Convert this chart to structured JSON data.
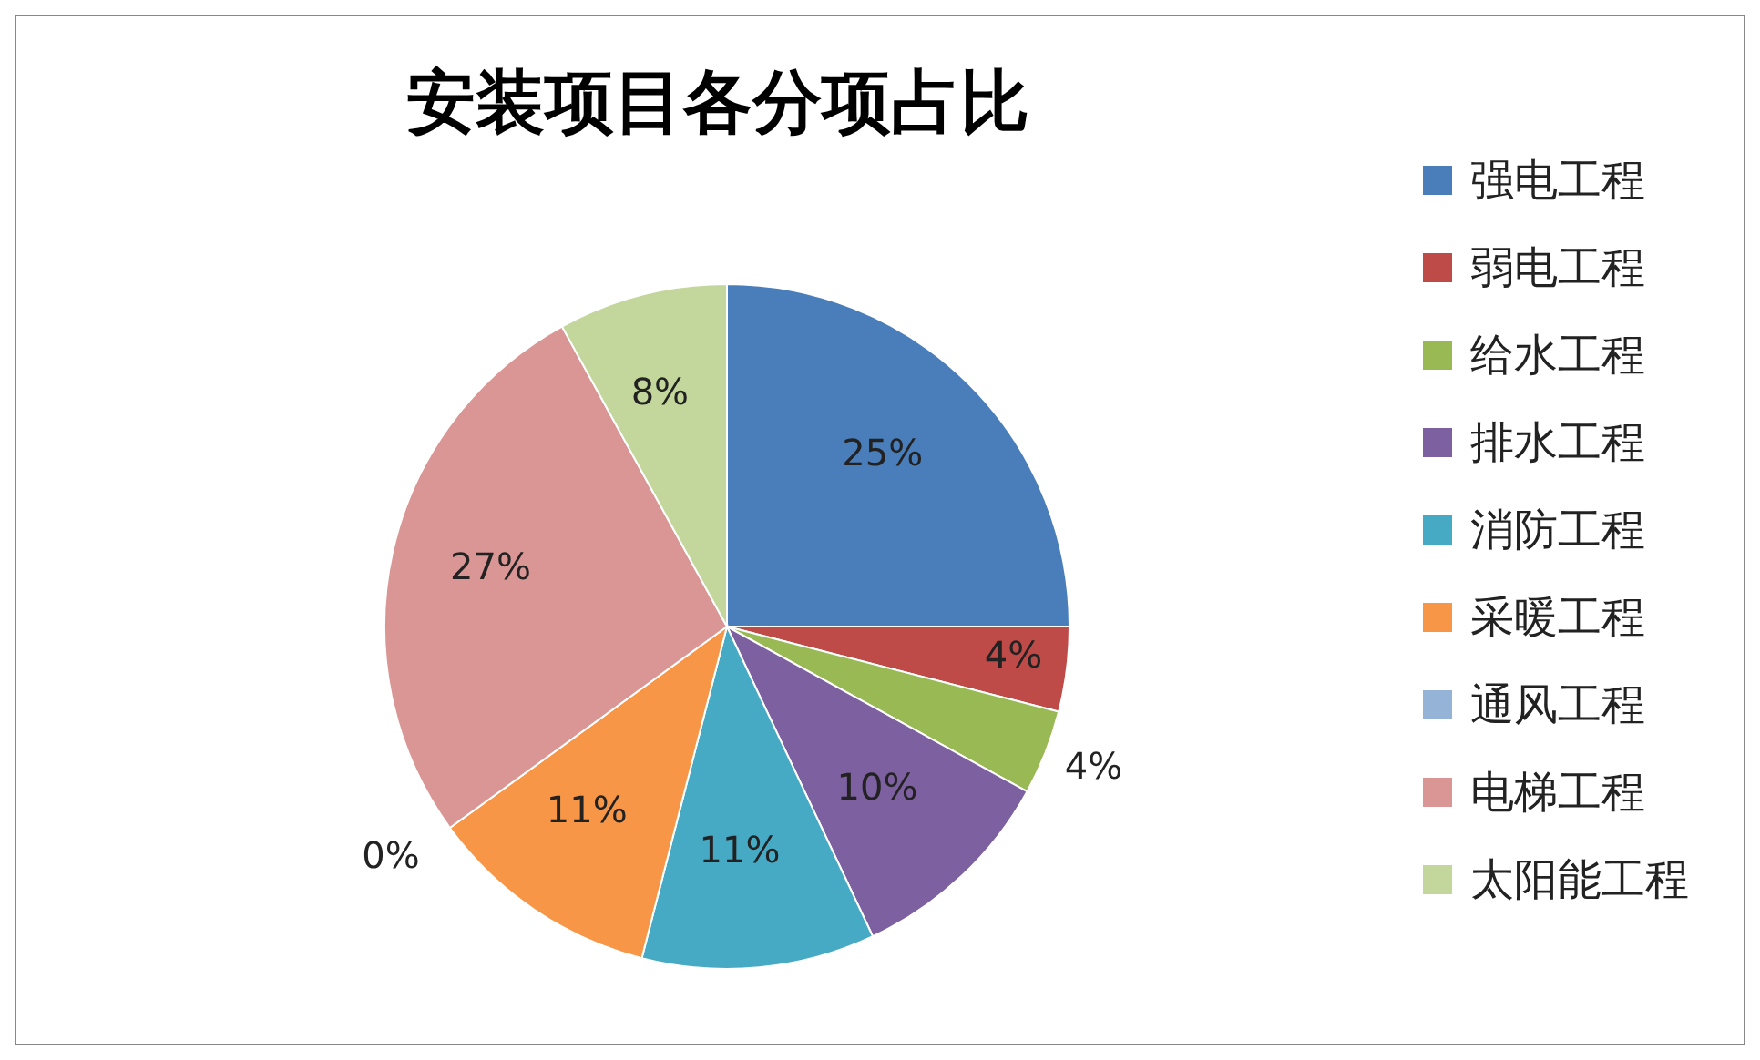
{
  "chart_data": {
    "type": "pie",
    "title": "安装项目各分项占比",
    "categories": [
      "强电工程",
      "弱电工程",
      "给水工程",
      "排水工程",
      "消防工程",
      "采暖工程",
      "通风工程",
      "电梯工程",
      "太阳能工程"
    ],
    "values": [
      25,
      4,
      4,
      10,
      11,
      11,
      0,
      27,
      8
    ],
    "colors": [
      "#4a7ebb",
      "#be4b48",
      "#98b954",
      "#7d60a0",
      "#46aac5",
      "#f79646",
      "#95b3d7",
      "#d99694",
      "#c3d69b"
    ],
    "value_labels": [
      "25%",
      "4%",
      "4%",
      "10%",
      "11%",
      "11%",
      "0%",
      "27%",
      "8%"
    ],
    "legend": "right"
  }
}
